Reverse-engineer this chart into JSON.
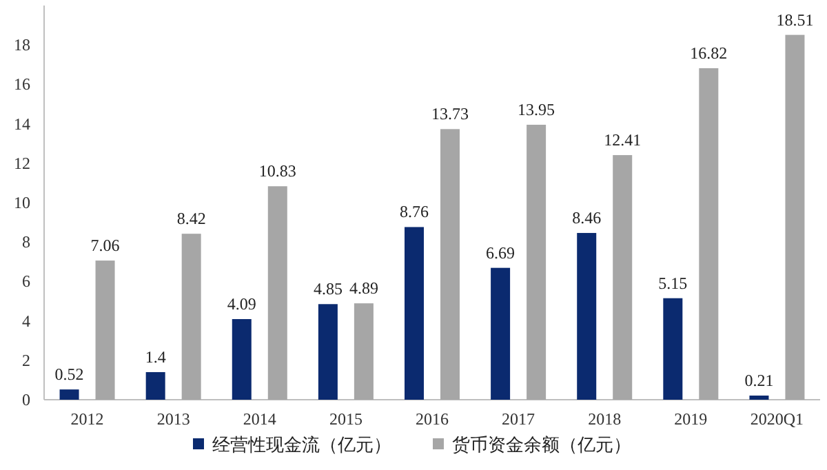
{
  "chart_data": {
    "type": "bar",
    "categories": [
      "2012",
      "2013",
      "2014",
      "2015",
      "2016",
      "2017",
      "2018",
      "2019",
      "2020Q1"
    ],
    "series": [
      {
        "name": "经营性现金流（亿元）",
        "color": "#0b2a6f",
        "values": [
          0.52,
          1.4,
          4.09,
          4.85,
          8.76,
          6.69,
          8.46,
          5.15,
          0.21
        ]
      },
      {
        "name": "货币资金余额（亿元）",
        "color": "#a6a6a6",
        "values": [
          7.06,
          8.42,
          10.83,
          4.89,
          13.73,
          13.95,
          12.41,
          16.82,
          18.51
        ]
      }
    ],
    "ylim": [
      0,
      20
    ],
    "yticks": [
      0,
      2,
      4,
      6,
      8,
      10,
      12,
      14,
      16,
      18
    ],
    "data_labels": true,
    "legend": "bottom",
    "grid": false
  }
}
